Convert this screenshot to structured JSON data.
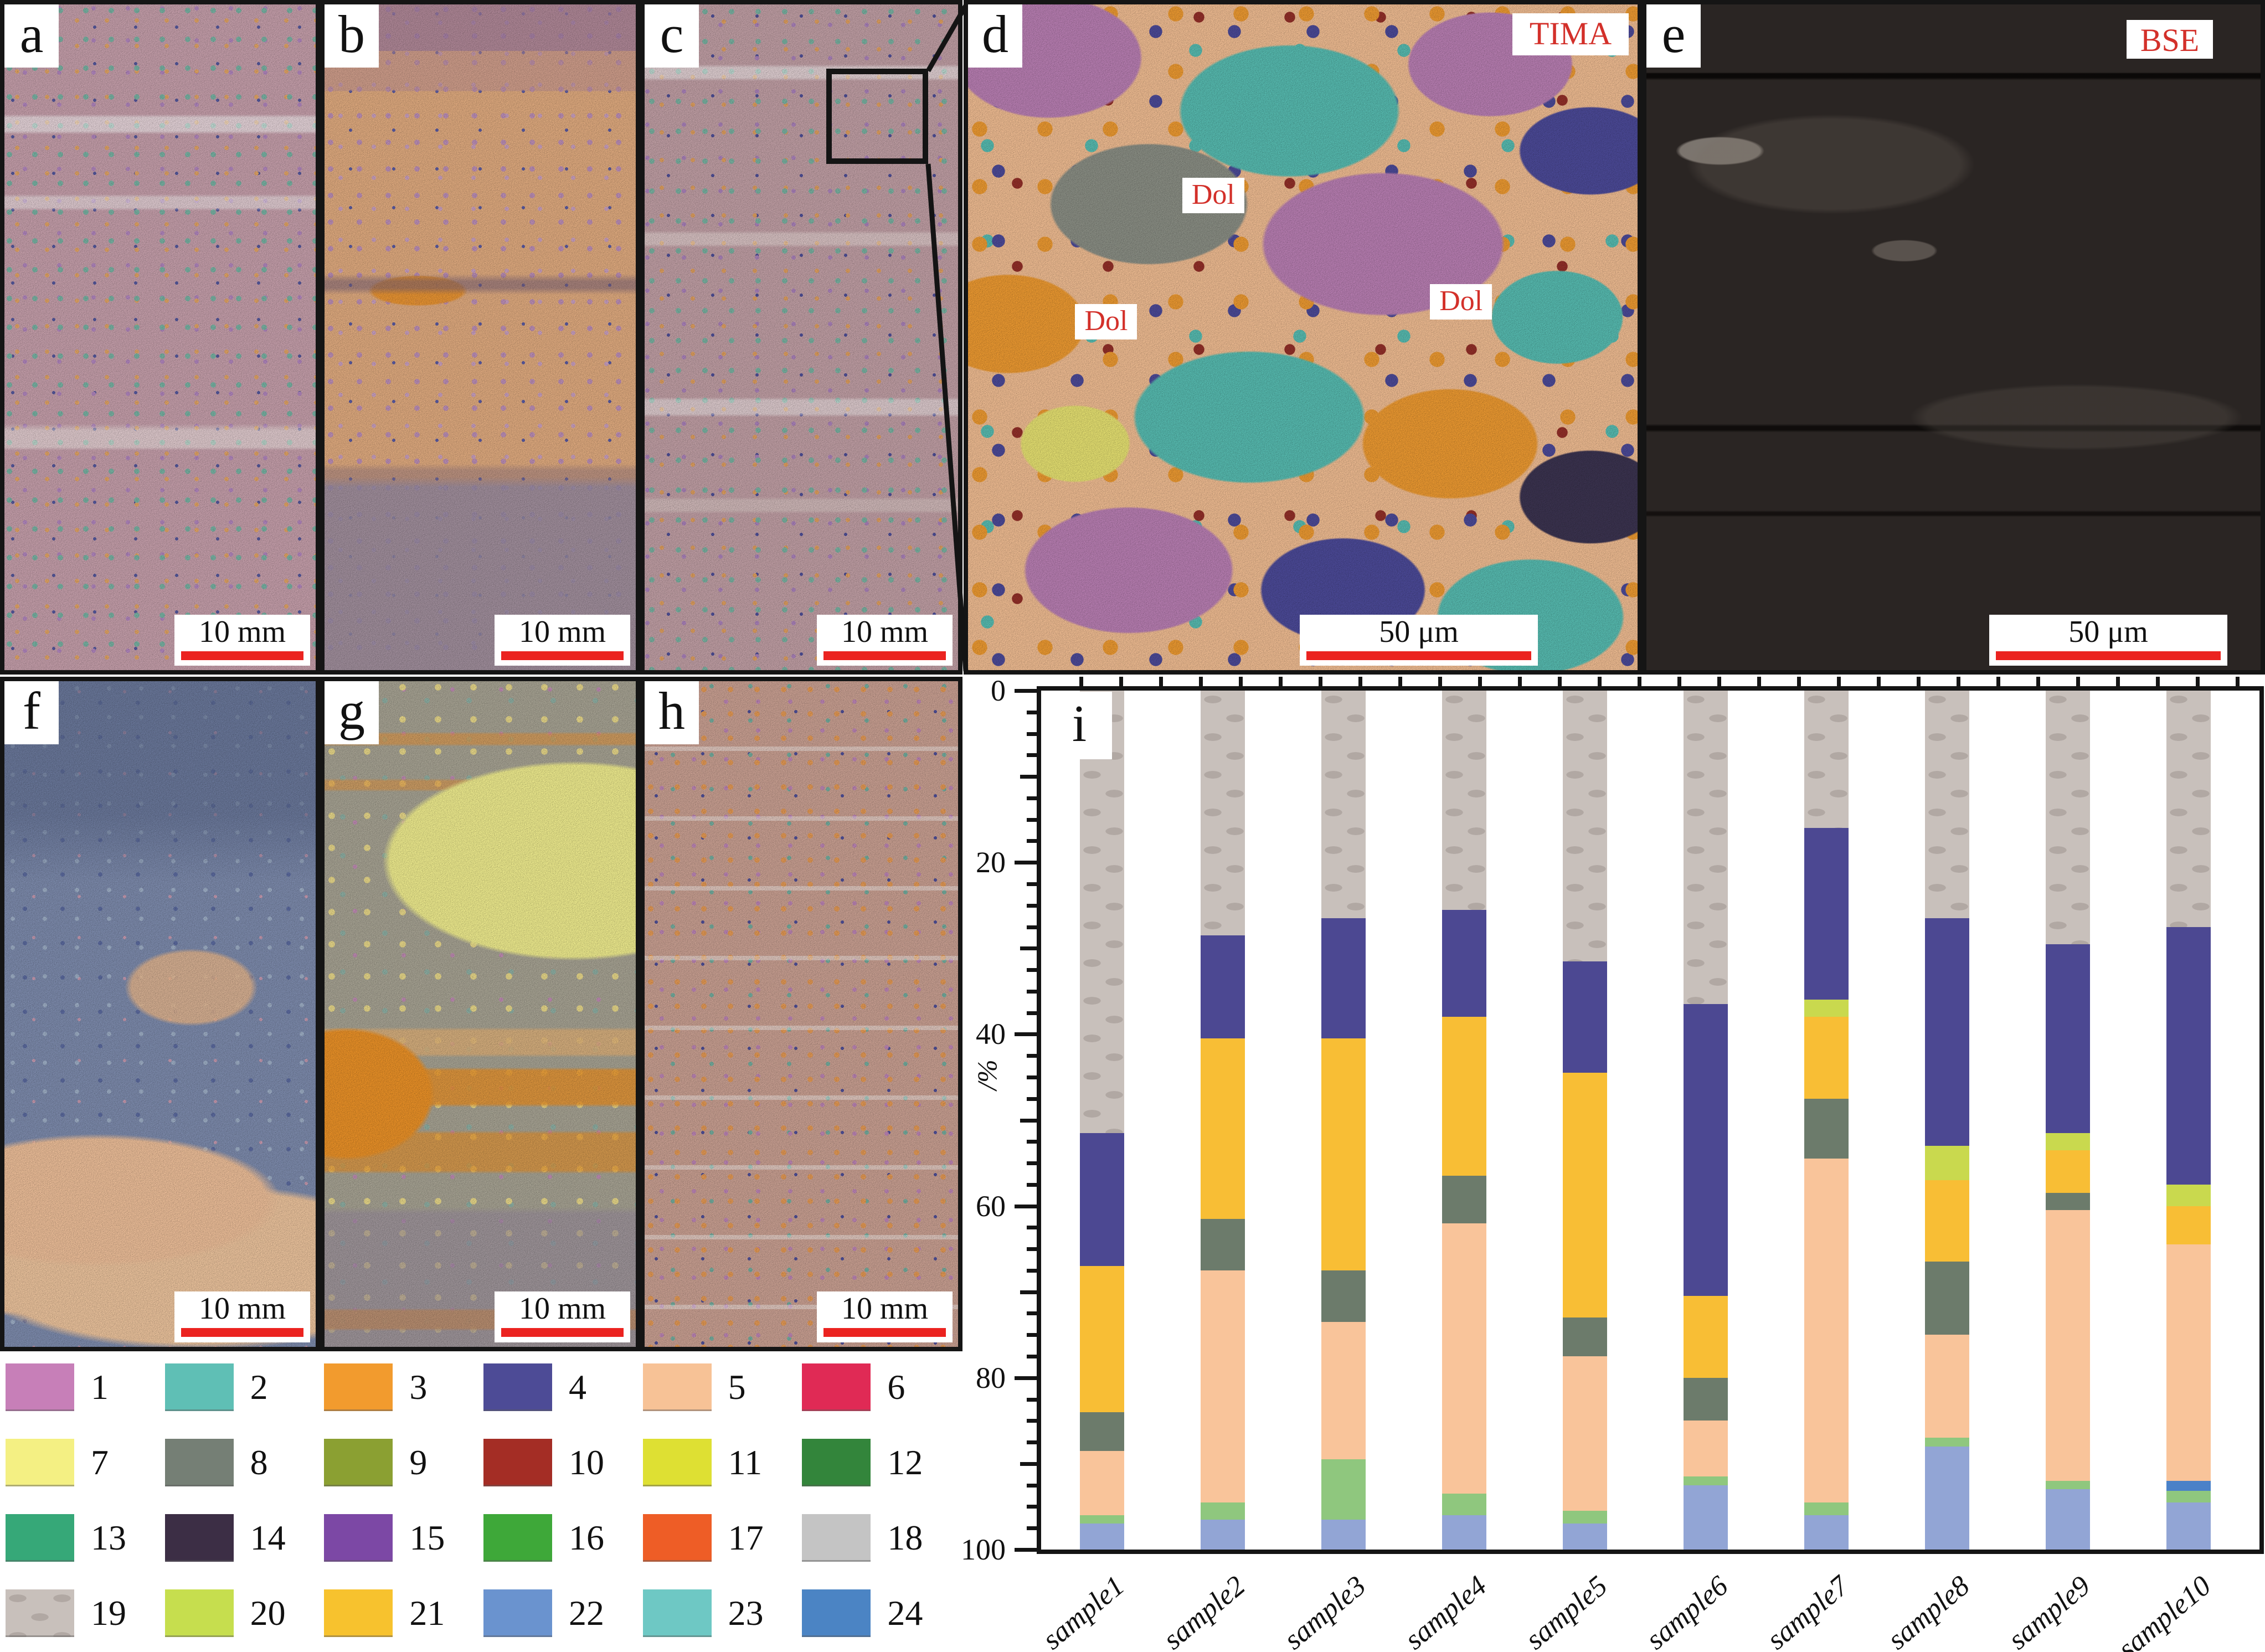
{
  "panels": {
    "a": {
      "label": "a",
      "scale_bar": "10 mm"
    },
    "b": {
      "label": "b",
      "scale_bar": "10 mm"
    },
    "c": {
      "label": "c",
      "scale_bar": "10 mm"
    },
    "d": {
      "label": "d",
      "scale_bar": "50 μm",
      "tag": "TIMA",
      "annotations": [
        "Dol",
        "Dol",
        "Dol"
      ]
    },
    "e": {
      "label": "e",
      "scale_bar": "50 μm",
      "tag": "BSE"
    },
    "f": {
      "label": "f",
      "scale_bar": "10 mm"
    },
    "g": {
      "label": "g",
      "scale_bar": "10 mm"
    },
    "h": {
      "label": "h",
      "scale_bar": "10 mm"
    }
  },
  "chart_data": {
    "type": "bar",
    "subtype": "stacked-vertical-inverted",
    "panel_label": "i",
    "ylabel": "/%",
    "xlabel": "",
    "y_axis": {
      "min": 0,
      "max": 100,
      "inverted": true,
      "major_tick": 20,
      "mid_tick": 10,
      "minor_tick": 2.5,
      "labels": [
        "0",
        "20",
        "40",
        "60",
        "80",
        "100"
      ]
    },
    "grid": false,
    "legend_position": "separate-numbered-legend",
    "categories": [
      "sample1",
      "sample2",
      "sample3",
      "sample4",
      "sample5",
      "sample6",
      "sample7",
      "sample8",
      "sample9",
      "sample10"
    ],
    "series": [
      {
        "name": "mineral 19",
        "legend_id": 19,
        "color": "#C8C0BB",
        "pattern": "dashed-squares",
        "values": [
          51.5,
          28.5,
          26.5,
          25.5,
          31.5,
          36.5,
          16,
          26.5,
          29.5,
          27.5
        ]
      },
      {
        "name": "mineral 4",
        "legend_id": 4,
        "color": "#4C4892",
        "values": [
          15.5,
          12,
          14,
          12.5,
          13,
          34,
          20,
          26.5,
          22,
          30
        ]
      },
      {
        "name": "mineral 20",
        "legend_id": 20,
        "color": "#C9D94E",
        "values": [
          0,
          0,
          0,
          0,
          0,
          0,
          2,
          4,
          2,
          2.5
        ]
      },
      {
        "name": "mineral 21",
        "legend_id": 21,
        "color": "#F8BE35",
        "values": [
          17,
          21,
          27,
          18.5,
          28.5,
          9.5,
          9.5,
          9.5,
          5,
          4.5
        ]
      },
      {
        "name": "mineral 8",
        "legend_id": 8,
        "color": "#6C7B6B",
        "values": [
          4.5,
          6,
          6,
          5.5,
          4.5,
          5,
          7,
          8.5,
          2,
          0
        ]
      },
      {
        "name": "mineral 5",
        "legend_id": 5,
        "color": "#F9C49A",
        "values": [
          7.5,
          27,
          16,
          31.5,
          18,
          6.5,
          40,
          12,
          31.5,
          27.5
        ]
      },
      {
        "name": "mineral 24",
        "legend_id": 24,
        "color": "#4A81C8",
        "values": [
          0,
          0,
          0,
          0,
          0,
          0,
          0,
          0,
          0,
          1.2
        ]
      },
      {
        "name": "mineral 16",
        "legend_id": 16,
        "color": "#8FC77E",
        "values": [
          1,
          2,
          7,
          2.5,
          1.5,
          1,
          1.5,
          1,
          1,
          1.3
        ]
      },
      {
        "name": "mineral 22",
        "legend_id": 22,
        "color": "#92A5D5",
        "values": [
          3,
          3.5,
          3.5,
          4,
          3,
          7.5,
          4,
          12,
          7,
          5.5
        ]
      }
    ]
  },
  "legend": {
    "items": [
      {
        "id": "1",
        "color": "#C77FB8"
      },
      {
        "id": "2",
        "color": "#5FBFB5"
      },
      {
        "id": "3",
        "color": "#F29B2E"
      },
      {
        "id": "4",
        "color": "#4D4B96"
      },
      {
        "id": "5",
        "color": "#F7C296"
      },
      {
        "id": "6",
        "color": "#E02A55"
      },
      {
        "id": "7",
        "color": "#F4F083"
      },
      {
        "id": "8",
        "color": "#757F75"
      },
      {
        "id": "9",
        "color": "#8BA032"
      },
      {
        "id": "10",
        "color": "#A42D25"
      },
      {
        "id": "11",
        "color": "#DEE033"
      },
      {
        "id": "12",
        "color": "#33853B"
      },
      {
        "id": "13",
        "color": "#36A878"
      },
      {
        "id": "14",
        "color": "#3C2E45"
      },
      {
        "id": "15",
        "color": "#7C48A5"
      },
      {
        "id": "16",
        "color": "#3EA839"
      },
      {
        "id": "17",
        "color": "#EE5D26"
      },
      {
        "id": "18",
        "color": "#C4C4C4"
      },
      {
        "id": "19",
        "color": "#C6BFBC",
        "pattern": "dashed-squares"
      },
      {
        "id": "20",
        "color": "#C6DE4E"
      },
      {
        "id": "21",
        "color": "#F7C22E"
      },
      {
        "id": "22",
        "color": "#6A93CF"
      },
      {
        "id": "23",
        "color": "#6EC8C4"
      },
      {
        "id": "24",
        "color": "#4B84C4"
      }
    ]
  },
  "colors": {
    "scale_bar_red": "#EB2320",
    "annotation_red": "#D3302A",
    "frame_black": "#141414"
  }
}
